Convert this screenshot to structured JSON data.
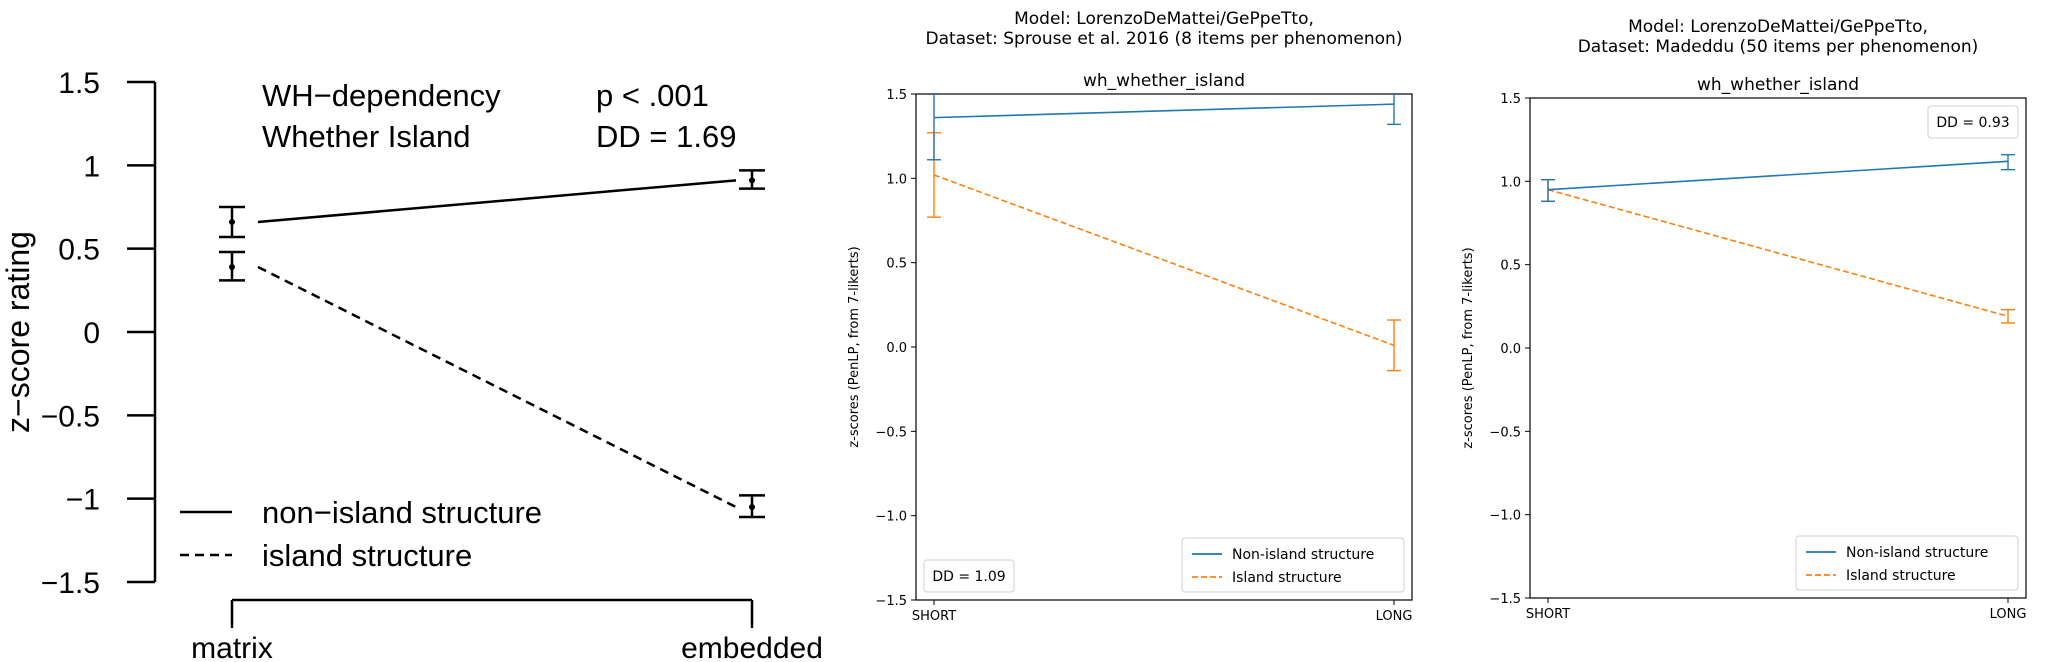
{
  "colors": {
    "non_island_blue": "#1f77b4",
    "island_orange": "#ff7f0e",
    "black": "#000000",
    "legend_border": "#d0d0d0"
  },
  "chart_data": [
    {
      "type": "line",
      "panel": "left",
      "ylabel": "z−score rating",
      "ylim": [
        -1.5,
        1.5
      ],
      "yticks": [
        1.5,
        1,
        0.5,
        0,
        -0.5,
        -1,
        -1.5
      ],
      "ytick_labels": [
        "1.5",
        "1",
        "0.5",
        "0",
        "−0.5",
        "−1",
        "−1.5"
      ],
      "categories": [
        "matrix",
        "embedded"
      ],
      "annotation": {
        "line1_left": "WH−dependency",
        "line1_right": "p < .001",
        "line2_left": "Whether Island",
        "line2_right": "DD = 1.69"
      },
      "legend_position": "bottom-left",
      "series": [
        {
          "name": "non−island structure",
          "style": "solid",
          "color": "#000000",
          "values": [
            0.66,
            0.91
          ],
          "err_low": [
            0.57,
            0.86
          ],
          "err_high": [
            0.75,
            0.97
          ]
        },
        {
          "name": "island structure",
          "style": "dashed",
          "color": "#000000",
          "values": [
            0.39,
            -1.05
          ],
          "err_low": [
            0.31,
            -1.11
          ],
          "err_high": [
            0.48,
            -0.98
          ]
        }
      ]
    },
    {
      "type": "line",
      "panel": "middle",
      "title": "Model: LorenzoDeMattei/GePpeTto,\nDataset: Sprouse et al. 2016 (8 items per phenomenon)",
      "subtitle": "wh_whether_island",
      "ylabel": "z-scores (PenLP, from 7-likerts)",
      "ylim": [
        -1.5,
        1.5
      ],
      "yticks": [
        1.5,
        1.0,
        0.5,
        0.0,
        -0.5,
        -1.0,
        -1.5
      ],
      "ytick_labels": [
        "1.5",
        "1.0",
        "0.5",
        "0.0",
        "−0.5",
        "−1.0",
        "−1.5"
      ],
      "categories": [
        "SHORT",
        "LONG"
      ],
      "dd_label": "DD = 1.09",
      "dd_position": "bottom-left",
      "legend_position": "bottom-right",
      "series": [
        {
          "name": "Non-island structure",
          "style": "solid",
          "color": "#1f77b4",
          "values": [
            1.36,
            1.44
          ],
          "err_low": [
            1.11,
            1.32
          ],
          "err_high": [
            1.61,
            1.56
          ]
        },
        {
          "name": "Island structure",
          "style": "dashed",
          "color": "#ff7f0e",
          "values": [
            1.02,
            0.01
          ],
          "err_low": [
            0.77,
            -0.14
          ],
          "err_high": [
            1.27,
            0.16
          ]
        }
      ]
    },
    {
      "type": "line",
      "panel": "right",
      "title": "Model: LorenzoDeMattei/GePpeTto,\nDataset: Madeddu (50 items per phenomenon)",
      "subtitle": "wh_whether_island",
      "ylabel": "z-scores (PenLP, from 7-likerts)",
      "ylim": [
        -1.5,
        1.5
      ],
      "yticks": [
        1.5,
        1.0,
        0.5,
        0.0,
        -0.5,
        -1.0,
        -1.5
      ],
      "ytick_labels": [
        "1.5",
        "1.0",
        "0.5",
        "0.0",
        "−0.5",
        "−1.0",
        "−1.5"
      ],
      "categories": [
        "SHORT",
        "LONG"
      ],
      "dd_label": "DD = 0.93",
      "dd_position": "top-right",
      "legend_position": "bottom-right",
      "series": [
        {
          "name": "Non-island structure",
          "style": "solid",
          "color": "#1f77b4",
          "values": [
            0.95,
            1.12
          ],
          "err_low": [
            0.88,
            1.07
          ],
          "err_high": [
            1.01,
            1.16
          ]
        },
        {
          "name": "Island structure",
          "style": "dashed",
          "color": "#ff7f0e",
          "values": [
            0.95,
            0.19
          ],
          "err_low": [
            0.88,
            0.15
          ],
          "err_high": [
            1.01,
            0.23
          ]
        }
      ]
    }
  ]
}
